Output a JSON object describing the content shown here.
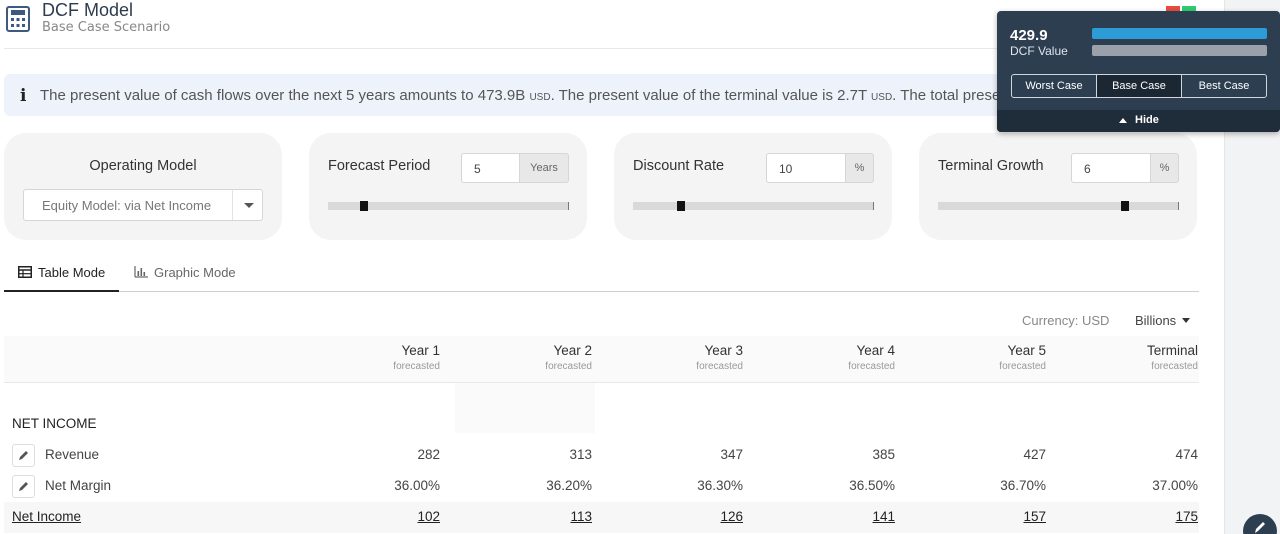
{
  "header": {
    "title": "DCF Model",
    "subtitle": "Base Case Scenario",
    "icon": "calculator-icon"
  },
  "banner": {
    "icon": "info-icon",
    "text_parts": [
      "The present value of cash flows over the next 5 years amounts to 473.9B ",
      "USD",
      ". The present value of the terminal value is 2.7T ",
      "USD",
      ". The total present valu"
    ]
  },
  "controls": {
    "operating_model": {
      "title": "Operating Model",
      "value": "Equity Model: via Net Income"
    },
    "forecast_period": {
      "title": "Forecast Period",
      "value": "5",
      "unit": "Years",
      "slider_fraction": 0.15
    },
    "discount_rate": {
      "title": "Discount Rate",
      "value": "10",
      "unit": "%",
      "slider_fraction": 0.2
    },
    "terminal_growth": {
      "title": "Terminal Growth",
      "value": "6",
      "unit": "%",
      "slider_fraction": 0.78
    }
  },
  "tabs": [
    {
      "label": "Table Mode",
      "icon": "table-icon",
      "active": true
    },
    {
      "label": "Graphic Mode",
      "icon": "bar-chart-icon",
      "active": false
    }
  ],
  "currency_label": "Currency: USD",
  "units_label": "Billions",
  "table": {
    "columns": [
      {
        "label": "Year 1",
        "sub": "forecasted"
      },
      {
        "label": "Year 2",
        "sub": "forecasted"
      },
      {
        "label": "Year 3",
        "sub": "forecasted"
      },
      {
        "label": "Year 4",
        "sub": "forecasted"
      },
      {
        "label": "Year 5",
        "sub": "forecasted"
      },
      {
        "label": "Terminal",
        "sub": "forecasted"
      }
    ],
    "section": "NET INCOME",
    "rows": [
      {
        "label": "Revenue",
        "values": [
          "282",
          "313",
          "347",
          "385",
          "427",
          "474"
        ],
        "editable": true
      },
      {
        "label": "Net Margin",
        "values": [
          "36.00%",
          "36.20%",
          "36.30%",
          "36.50%",
          "36.70%",
          "37.00%"
        ],
        "editable": true
      },
      {
        "label": "Net Income",
        "values": [
          "102",
          "113",
          "126",
          "141",
          "157",
          "175"
        ],
        "editable": false
      }
    ]
  },
  "dcf_panel": {
    "value": "429.9",
    "value_label": "DCF Value",
    "scenarios": [
      "Worst Case",
      "Base Case",
      "Best Case"
    ],
    "active_scenario": "Base Case",
    "hide_label": "Hide",
    "colors": {
      "primary_bar": "#2d9bd6",
      "secondary_bar": "#9aa1aa",
      "panel_bg": "#2d3e50"
    }
  },
  "colors": {
    "accent": "#2d3e50",
    "banner_bg": "#eef3fb",
    "status_red": "#e74c3c",
    "status_green": "#2ecc71"
  }
}
